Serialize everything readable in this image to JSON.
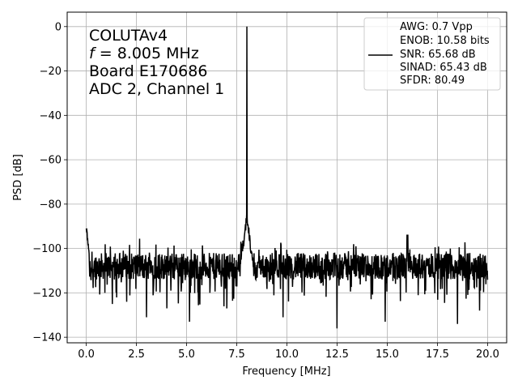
{
  "chart_data": {
    "type": "line",
    "xlabel": "Frequency [MHz]",
    "ylabel": "PSD [dB]",
    "xlim": [
      -0.95,
      20.95
    ],
    "ylim": [
      -142.5,
      6.5
    ],
    "xticks": [
      0.0,
      2.5,
      5.0,
      7.5,
      10.0,
      12.5,
      15.0,
      17.5,
      20.0
    ],
    "xtick_labels": [
      "0.0",
      "2.5",
      "5.0",
      "7.5",
      "10.0",
      "12.5",
      "15.0",
      "17.5",
      "20.0"
    ],
    "yticks": [
      0,
      -20,
      -40,
      -60,
      -80,
      -100,
      -120,
      -140
    ],
    "ytick_labels": [
      "0",
      "−20",
      "−40",
      "−60",
      "−80",
      "−100",
      "−120",
      "−140"
    ],
    "grid": true,
    "annotation": {
      "line1": "COLUTAv4",
      "line2_symbol": "f",
      "line2_rest": " = 8.005 MHz",
      "line3": "Board E170686",
      "line4": "ADC 2, Channel 1"
    },
    "legend": {
      "position": "top-right",
      "lines": [
        "AWG: 0.7 Vpp",
        "ENOB: 10.58 bits",
        "SNR: 65.68 dB",
        "SINAD: 65.43 dB",
        "SFDR: 80.49"
      ]
    },
    "series": [
      {
        "color": "#000000",
        "signal_freq": 8.005,
        "peak_db": 0,
        "noise_floor_db": -108,
        "noise_spread_db": 6,
        "skirt_top_db": -82,
        "dc_db": -88,
        "spurs": [
          {
            "x": 16.0,
            "y": -94
          }
        ],
        "dips": [
          {
            "x": 5.15,
            "y": -133
          },
          {
            "x": 12.5,
            "y": -136
          },
          {
            "x": 19.6,
            "y": -128
          },
          {
            "x": 3.0,
            "y": -131
          },
          {
            "x": 9.8,
            "y": -131
          },
          {
            "x": 14.9,
            "y": -133
          },
          {
            "x": 18.5,
            "y": -134
          },
          {
            "x": 1.3,
            "y": -125
          },
          {
            "x": 7.0,
            "y": -127
          }
        ],
        "x_range": [
          0.0,
          20.0
        ],
        "n_points": 1400
      }
    ]
  }
}
